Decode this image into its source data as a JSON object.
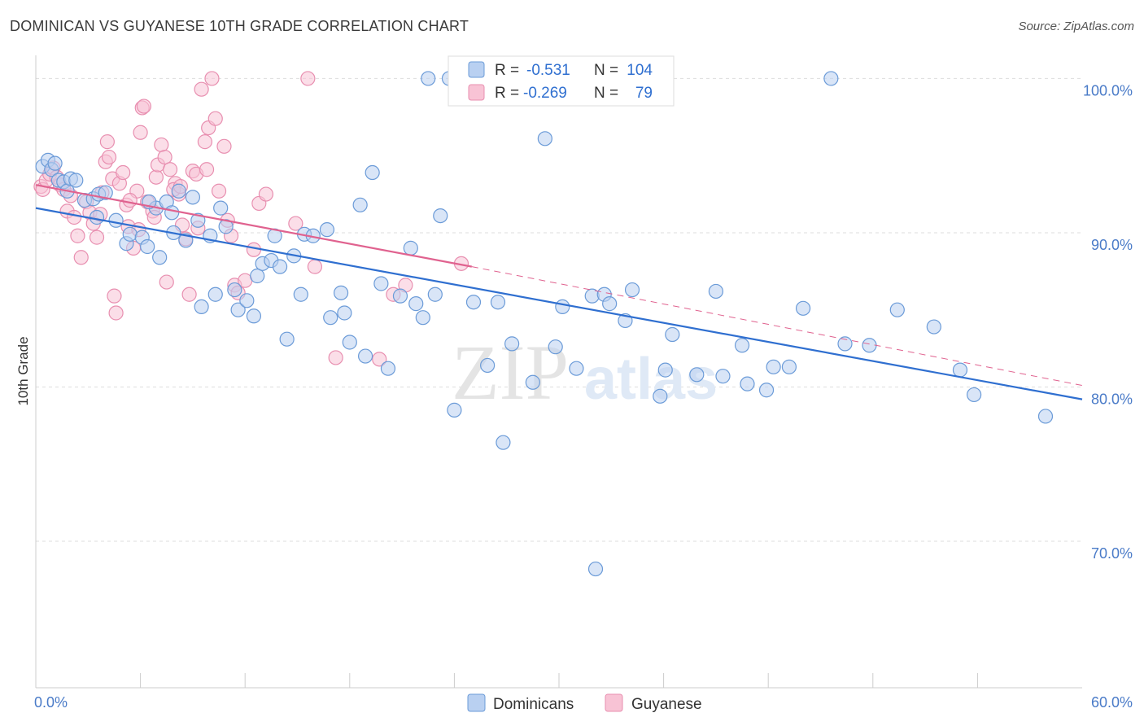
{
  "header": {
    "title": "DOMINICAN VS GUYANESE 10TH GRADE CORRELATION CHART",
    "source": "Source: ZipAtlas.com"
  },
  "watermark": {
    "zip": "ZIP",
    "atlas": "atlas"
  },
  "legend_box": {
    "rows": [
      {
        "r_label": "R =",
        "r_value": "-0.531",
        "n_label": "N =",
        "n_value": "104"
      },
      {
        "r_label": "R =",
        "r_value": "-0.269",
        "n_label": "N =",
        "n_value": "79"
      }
    ]
  },
  "bottom_legend": {
    "items": [
      "Dominicans",
      "Guyanese"
    ]
  },
  "colors": {
    "dominicans_fill": "#b9d0f1",
    "dominicans_stroke": "#6b9bd8",
    "dominicans_line": "#2f6fd0",
    "guyanese_fill": "#f8c3d5",
    "guyanese_stroke": "#e88fb0",
    "guyanese_line": "#e0628f",
    "tick_text": "#4a7bc8",
    "grid": "#dddddd"
  },
  "chart_data": {
    "type": "scatter",
    "title": "DOMINICAN VS GUYANESE 10TH GRADE CORRELATION CHART",
    "xlabel": "",
    "ylabel": "10th Grade",
    "xlim": [
      0,
      60
    ],
    "ylim": [
      60.5,
      101.5
    ],
    "x_tick_labels": [
      "0.0%",
      "60.0%"
    ],
    "y_ticks": [
      {
        "value": 100,
        "label": "100.0%"
      },
      {
        "value": 90,
        "label": "90.0%"
      },
      {
        "value": 80,
        "label": "80.0%"
      },
      {
        "value": 70,
        "label": "70.0%"
      }
    ],
    "grid": true,
    "legend": "top-center",
    "series": [
      {
        "name": "Dominicans",
        "r": -0.531,
        "n": 104,
        "trend": {
          "x0": 0,
          "y0": 91.6,
          "x1": 60,
          "y1": 79.2,
          "dashed_to": 60
        },
        "points": [
          [
            0.4,
            94.3
          ],
          [
            0.7,
            94.7
          ],
          [
            0.9,
            94.1
          ],
          [
            1.1,
            94.5
          ],
          [
            1.3,
            93.4
          ],
          [
            1.6,
            93.3
          ],
          [
            1.8,
            92.7
          ],
          [
            2.0,
            93.5
          ],
          [
            2.3,
            93.4
          ],
          [
            2.8,
            92.1
          ],
          [
            3.3,
            92.2
          ],
          [
            3.6,
            92.5
          ],
          [
            4.0,
            92.6
          ],
          [
            3.5,
            91.0
          ],
          [
            4.6,
            90.8
          ],
          [
            5.2,
            89.3
          ],
          [
            5.4,
            89.9
          ],
          [
            6.1,
            89.7
          ],
          [
            6.4,
            89.1
          ],
          [
            6.9,
            91.6
          ],
          [
            6.5,
            92.0
          ],
          [
            7.1,
            88.4
          ],
          [
            7.5,
            92.0
          ],
          [
            7.8,
            91.3
          ],
          [
            7.9,
            90.0
          ],
          [
            8.6,
            89.5
          ],
          [
            8.2,
            92.7
          ],
          [
            9.0,
            92.3
          ],
          [
            9.3,
            90.8
          ],
          [
            10.0,
            89.8
          ],
          [
            10.6,
            91.6
          ],
          [
            10.9,
            90.4
          ],
          [
            9.5,
            85.2
          ],
          [
            10.3,
            86.0
          ],
          [
            11.4,
            86.3
          ],
          [
            11.6,
            85.0
          ],
          [
            12.1,
            85.6
          ],
          [
            12.5,
            84.6
          ],
          [
            12.7,
            87.2
          ],
          [
            13.0,
            88.0
          ],
          [
            13.5,
            88.2
          ],
          [
            13.7,
            89.8
          ],
          [
            14.0,
            87.8
          ],
          [
            14.4,
            83.1
          ],
          [
            14.8,
            88.5
          ],
          [
            15.2,
            86.0
          ],
          [
            15.4,
            89.9
          ],
          [
            15.9,
            89.8
          ],
          [
            16.7,
            90.2
          ],
          [
            16.9,
            84.5
          ],
          [
            17.5,
            86.1
          ],
          [
            17.7,
            84.8
          ],
          [
            18.0,
            82.9
          ],
          [
            18.6,
            91.8
          ],
          [
            18.9,
            82.0
          ],
          [
            19.3,
            93.9
          ],
          [
            19.8,
            86.7
          ],
          [
            20.2,
            81.2
          ],
          [
            20.9,
            85.9
          ],
          [
            21.5,
            89.0
          ],
          [
            21.8,
            85.4
          ],
          [
            22.2,
            84.5
          ],
          [
            22.5,
            100.0
          ],
          [
            22.9,
            86.0
          ],
          [
            23.2,
            91.1
          ],
          [
            23.7,
            100.0
          ],
          [
            24.0,
            78.5
          ],
          [
            25.1,
            85.5
          ],
          [
            25.9,
            81.4
          ],
          [
            26.5,
            85.5
          ],
          [
            26.8,
            76.4
          ],
          [
            27.3,
            82.8
          ],
          [
            28.5,
            80.3
          ],
          [
            29.2,
            96.1
          ],
          [
            29.8,
            82.6
          ],
          [
            30.2,
            85.2
          ],
          [
            31.0,
            81.2
          ],
          [
            31.9,
            85.9
          ],
          [
            32.6,
            86.0
          ],
          [
            32.1,
            68.2
          ],
          [
            32.9,
            85.4
          ],
          [
            33.5,
            100.0
          ],
          [
            33.8,
            84.3
          ],
          [
            34.2,
            86.3
          ],
          [
            35.8,
            79.4
          ],
          [
            36.1,
            81.1
          ],
          [
            36.5,
            83.4
          ],
          [
            37.9,
            80.8
          ],
          [
            39.0,
            86.2
          ],
          [
            39.4,
            80.7
          ],
          [
            40.5,
            82.7
          ],
          [
            40.8,
            80.2
          ],
          [
            41.9,
            79.8
          ],
          [
            42.3,
            81.3
          ],
          [
            43.2,
            81.3
          ],
          [
            44.0,
            85.1
          ],
          [
            45.6,
            100.0
          ],
          [
            46.4,
            82.8
          ],
          [
            47.8,
            82.7
          ],
          [
            49.4,
            85.0
          ],
          [
            51.5,
            83.9
          ],
          [
            53.0,
            81.1
          ],
          [
            53.8,
            79.5
          ],
          [
            57.9,
            78.1
          ]
        ]
      },
      {
        "name": "Guyanese",
        "r": -0.269,
        "n": 79,
        "trend": {
          "x0": 0,
          "y0": 93.1,
          "x1": 25,
          "y1": 87.8,
          "dashed_to": 60,
          "dash_end_y": 80.1
        },
        "points": [
          [
            0.3,
            93.0
          ],
          [
            0.4,
            92.8
          ],
          [
            0.6,
            93.4
          ],
          [
            0.8,
            93.8
          ],
          [
            1.0,
            94.2
          ],
          [
            1.2,
            93.6
          ],
          [
            1.4,
            93.1
          ],
          [
            1.6,
            92.8
          ],
          [
            1.8,
            91.4
          ],
          [
            2.0,
            92.4
          ],
          [
            2.2,
            91.0
          ],
          [
            2.4,
            89.8
          ],
          [
            2.6,
            88.4
          ],
          [
            2.9,
            92.0
          ],
          [
            3.1,
            91.3
          ],
          [
            3.3,
            90.6
          ],
          [
            3.5,
            89.7
          ],
          [
            3.7,
            91.2
          ],
          [
            3.8,
            92.6
          ],
          [
            4.0,
            94.6
          ],
          [
            4.1,
            95.9
          ],
          [
            4.2,
            94.9
          ],
          [
            4.4,
            93.5
          ],
          [
            4.5,
            85.9
          ],
          [
            4.6,
            84.8
          ],
          [
            4.8,
            93.2
          ],
          [
            5.0,
            93.9
          ],
          [
            5.2,
            91.8
          ],
          [
            5.3,
            90.4
          ],
          [
            5.6,
            89.0
          ],
          [
            5.8,
            92.7
          ],
          [
            6.0,
            96.5
          ],
          [
            6.1,
            98.1
          ],
          [
            6.2,
            98.2
          ],
          [
            6.4,
            92.0
          ],
          [
            6.7,
            91.4
          ],
          [
            6.9,
            93.6
          ],
          [
            7.0,
            94.4
          ],
          [
            7.2,
            95.7
          ],
          [
            7.4,
            94.9
          ],
          [
            7.5,
            86.8
          ],
          [
            7.7,
            94.1
          ],
          [
            8.0,
            93.2
          ],
          [
            8.2,
            92.5
          ],
          [
            8.4,
            90.5
          ],
          [
            8.6,
            89.6
          ],
          [
            8.8,
            86.0
          ],
          [
            9.0,
            94.0
          ],
          [
            9.2,
            93.8
          ],
          [
            9.5,
            99.3
          ],
          [
            9.7,
            95.9
          ],
          [
            9.9,
            96.8
          ],
          [
            10.1,
            100.0
          ],
          [
            10.3,
            97.4
          ],
          [
            10.5,
            92.7
          ],
          [
            10.8,
            95.6
          ],
          [
            11.0,
            90.8
          ],
          [
            11.2,
            89.8
          ],
          [
            11.4,
            86.6
          ],
          [
            11.6,
            86.1
          ],
          [
            12.0,
            86.9
          ],
          [
            5.4,
            92.1
          ],
          [
            5.9,
            90.2
          ],
          [
            6.8,
            91.0
          ],
          [
            7.9,
            92.8
          ],
          [
            8.3,
            93.0
          ],
          [
            9.3,
            90.3
          ],
          [
            9.8,
            94.1
          ],
          [
            12.5,
            88.9
          ],
          [
            12.8,
            91.9
          ],
          [
            13.2,
            92.5
          ],
          [
            14.9,
            90.6
          ],
          [
            15.6,
            100.0
          ],
          [
            16.0,
            87.8
          ],
          [
            17.2,
            81.9
          ],
          [
            19.7,
            81.8
          ],
          [
            20.5,
            86.0
          ],
          [
            21.2,
            86.6
          ],
          [
            24.4,
            88.0
          ]
        ]
      }
    ]
  }
}
